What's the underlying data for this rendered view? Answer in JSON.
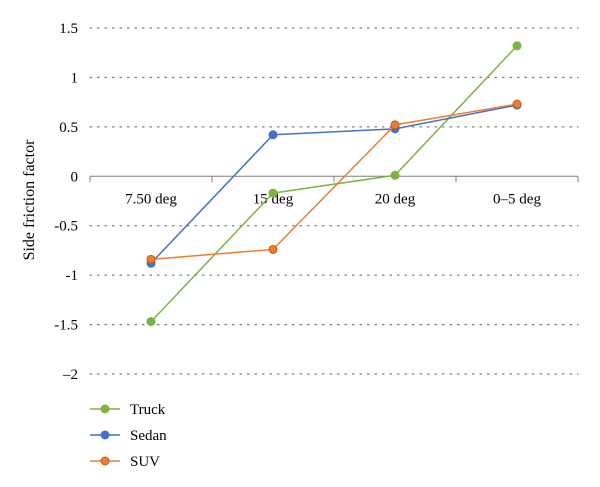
{
  "chart_data": {
    "type": "line",
    "title": "",
    "xlabel": "",
    "ylabel": "Side friction factor",
    "categories": [
      "7.50 deg",
      "15 deg",
      "20 deg",
      "0–5 deg"
    ],
    "ylim": [
      -2,
      1.5
    ],
    "yticks": [
      1.5,
      1,
      0.5,
      0,
      -0.5,
      -1,
      -1.5,
      -2
    ],
    "ytick_labels": [
      "1.5",
      "1",
      "0.5",
      "0",
      "-0.5",
      "-1",
      "-1.5",
      "–2"
    ],
    "grid": "horizontal dotted",
    "legend_position": "bottom-left",
    "series": [
      {
        "name": "Truck",
        "color": "#7cb342",
        "marker_edge": "#7cb342",
        "values": [
          -1.47,
          -0.17,
          0.01,
          1.32
        ]
      },
      {
        "name": "Sedan",
        "color": "#4472c4",
        "marker_edge": "#4472c4",
        "values": [
          -0.88,
          0.42,
          0.48,
          0.72
        ]
      },
      {
        "name": "SUV",
        "color": "#ed7d31",
        "marker_edge": "#c55a11",
        "values": [
          -0.84,
          -0.74,
          0.52,
          0.73
        ]
      }
    ]
  }
}
